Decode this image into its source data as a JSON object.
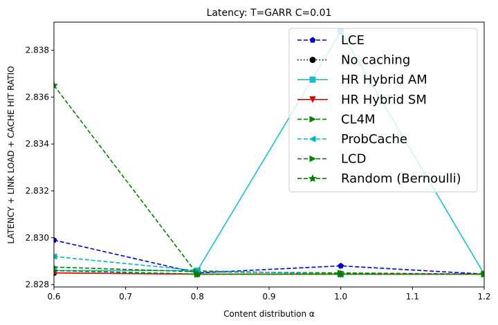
{
  "chart_data": {
    "type": "line",
    "title": "Latency: T=GARR C=0.01",
    "xlabel": "Content distribution α",
    "ylabel": "LATENCY + LINK LOAD + CACHE HIT RATIO",
    "xlim": [
      0.6,
      1.2
    ],
    "ylim": [
      2.8279,
      2.8392
    ],
    "x_ticks": [
      "0.6",
      "0.7",
      "0.8",
      "0.9",
      "1.0",
      "1.1",
      "1.2"
    ],
    "y_ticks": [
      "2.828",
      "2.830",
      "2.832",
      "2.834",
      "2.836",
      "2.838"
    ],
    "grid": false,
    "legend_position": "top-right",
    "x": [
      0.6,
      0.8,
      1.0,
      1.2
    ],
    "series": [
      {
        "name": "LCE",
        "values": [
          2.8299,
          2.8285,
          2.8288,
          2.82845
        ],
        "color": "#0000cc",
        "dash": "dashed",
        "marker": "pentagon"
      },
      {
        "name": "No caching",
        "values": [
          2.8285,
          2.82845,
          2.82845,
          2.82845
        ],
        "color": "#000000",
        "dash": "dotted",
        "marker": "circle"
      },
      {
        "name": "HR Hybrid AM",
        "values": [
          2.8286,
          2.8286,
          2.8388,
          2.82845
        ],
        "color": "#17becf",
        "dash": "solid",
        "marker": "square"
      },
      {
        "name": "HR Hybrid SM",
        "values": [
          2.8285,
          2.82845,
          2.82845,
          2.82845
        ],
        "color": "#e00000",
        "dash": "solid",
        "marker": "triangle-down"
      },
      {
        "name": "CL4M",
        "values": [
          2.82875,
          2.82855,
          2.8285,
          2.82845
        ],
        "color": "#007f00",
        "dash": "dashed",
        "marker": "triangle-right"
      },
      {
        "name": "ProbCache",
        "values": [
          2.8292,
          2.8286,
          2.82845,
          2.82845
        ],
        "color": "#00b5b5",
        "dash": "dashed",
        "marker": "triangle-left"
      },
      {
        "name": "LCD",
        "values": [
          2.8286,
          2.82845,
          2.82845,
          2.82845
        ],
        "color": "#007f00",
        "dash": "dashed",
        "marker": "triangle-right"
      },
      {
        "name": "Random (Bernoulli)",
        "values": [
          2.8365,
          2.82845,
          2.82845,
          2.82845
        ],
        "color": "#007f00",
        "dash": "dashed",
        "marker": "star"
      }
    ]
  }
}
